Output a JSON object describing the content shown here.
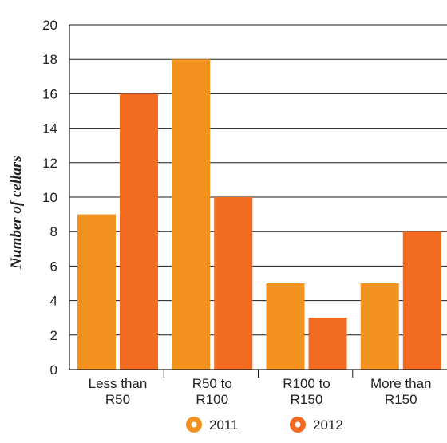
{
  "chart_data": {
    "type": "bar",
    "ylabel": "Number of cellars",
    "xlabel": "",
    "ylim": [
      0,
      20
    ],
    "yticks": [
      0,
      2,
      4,
      6,
      8,
      10,
      12,
      14,
      16,
      18,
      20
    ],
    "grid": true,
    "legend": "bottom",
    "categories": [
      [
        "Less than",
        "R50"
      ],
      [
        "R50 to",
        "R100"
      ],
      [
        "R100 to",
        "R150"
      ],
      [
        "More than",
        "R150"
      ]
    ],
    "series": [
      {
        "name": "2011",
        "color": "#f4921f",
        "values": [
          9,
          18,
          5,
          5
        ]
      },
      {
        "name": "2012",
        "color": "#f26b21",
        "values": [
          16,
          10,
          3,
          8
        ]
      }
    ]
  }
}
